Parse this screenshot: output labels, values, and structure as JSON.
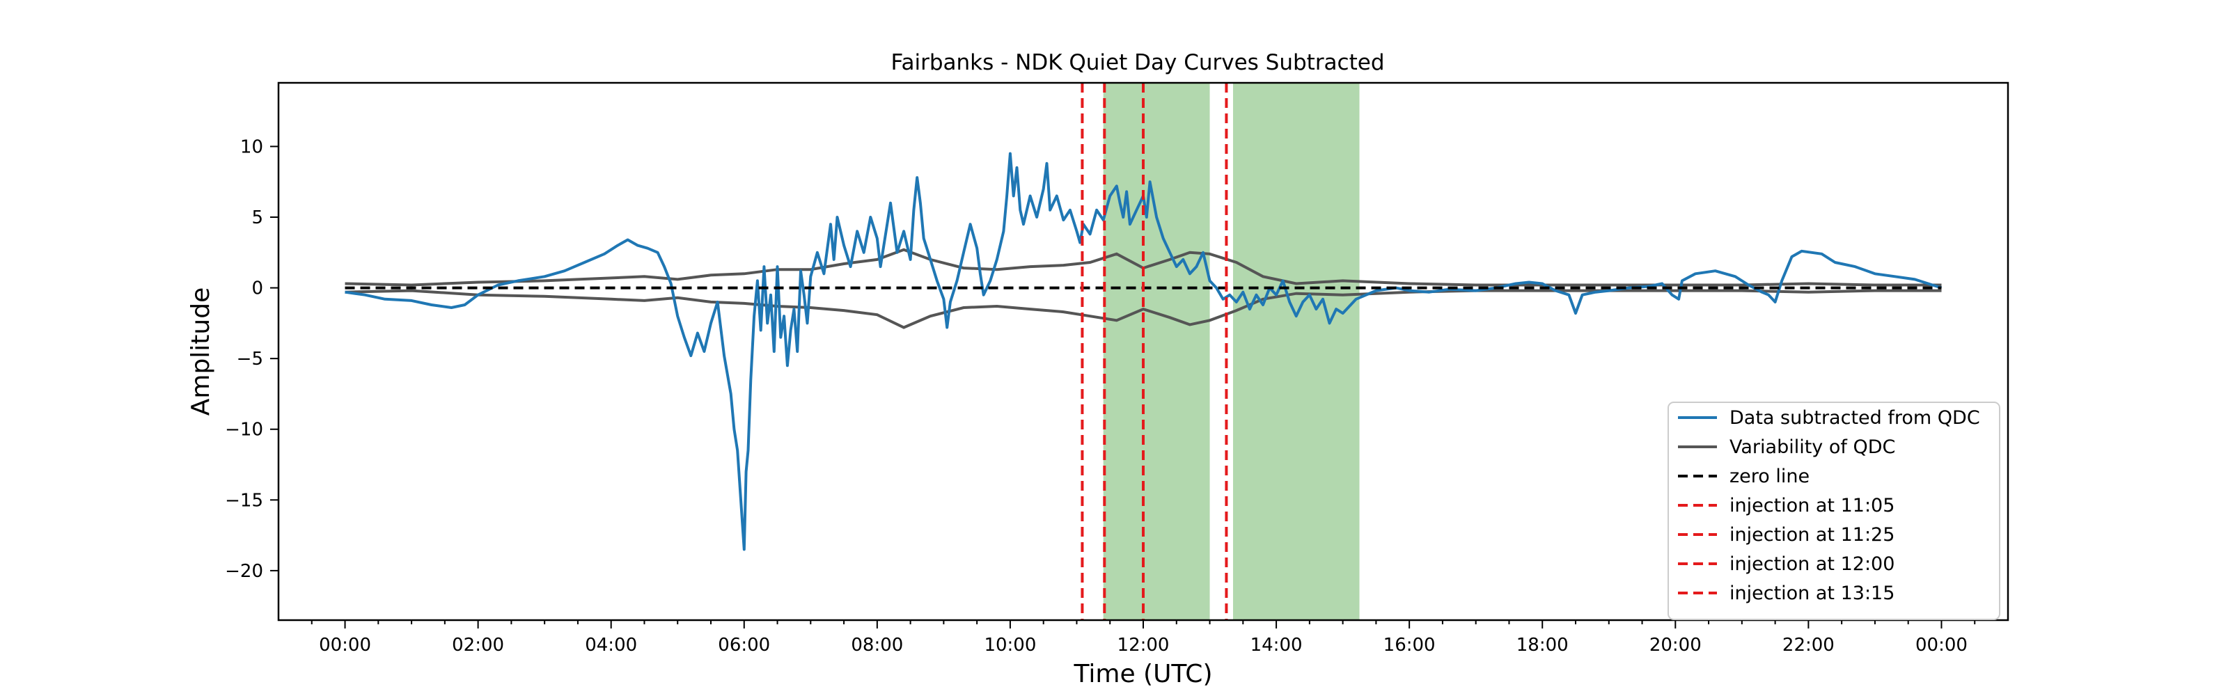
{
  "chart_data": {
    "type": "line",
    "title": "Fairbanks - NDK Quiet Day Curves Subtracted",
    "xlabel": "Time (UTC)",
    "ylabel": "Amplitude",
    "xlim_hours": [
      -1.0,
      25.0
    ],
    "ylim": [
      -23.5,
      14.5
    ],
    "grid": false,
    "legend_position": "lower-right",
    "x_ticks": [
      {
        "hour": 0,
        "label": "00:00"
      },
      {
        "hour": 2,
        "label": "02:00"
      },
      {
        "hour": 4,
        "label": "04:00"
      },
      {
        "hour": 6,
        "label": "06:00"
      },
      {
        "hour": 8,
        "label": "08:00"
      },
      {
        "hour": 10,
        "label": "10:00"
      },
      {
        "hour": 12,
        "label": "12:00"
      },
      {
        "hour": 14,
        "label": "14:00"
      },
      {
        "hour": 16,
        "label": "16:00"
      },
      {
        "hour": 18,
        "label": "18:00"
      },
      {
        "hour": 20,
        "label": "20:00"
      },
      {
        "hour": 22,
        "label": "22:00"
      },
      {
        "hour": 24,
        "label": "00:00"
      }
    ],
    "y_ticks": [
      {
        "value": 10,
        "label": "10"
      },
      {
        "value": 5,
        "label": "5"
      },
      {
        "value": 0,
        "label": "0"
      },
      {
        "value": -5,
        "label": "−5"
      },
      {
        "value": -10,
        "label": "−10"
      },
      {
        "value": -15,
        "label": "−15"
      },
      {
        "value": -20,
        "label": "−20"
      }
    ],
    "shaded_regions": [
      {
        "start_hour": 11.4,
        "end_hour": 13.0,
        "color": "#b2d8ae"
      },
      {
        "start_hour": 13.35,
        "end_hour": 15.25,
        "color": "#b2d8ae"
      }
    ],
    "series": [
      {
        "name": "Data subtracted from QDC",
        "color": "#1f77b4",
        "style": "solid",
        "points": [
          [
            0.0,
            -0.3
          ],
          [
            0.3,
            -0.5
          ],
          [
            0.6,
            -0.8
          ],
          [
            1.0,
            -0.9
          ],
          [
            1.3,
            -1.2
          ],
          [
            1.6,
            -1.4
          ],
          [
            1.8,
            -1.2
          ],
          [
            2.0,
            -0.5
          ],
          [
            2.3,
            0.2
          ],
          [
            2.6,
            0.5
          ],
          [
            3.0,
            0.8
          ],
          [
            3.3,
            1.2
          ],
          [
            3.6,
            1.8
          ],
          [
            3.9,
            2.4
          ],
          [
            4.1,
            3.0
          ],
          [
            4.25,
            3.4
          ],
          [
            4.4,
            3.0
          ],
          [
            4.55,
            2.8
          ],
          [
            4.7,
            2.5
          ],
          [
            4.8,
            1.5
          ],
          [
            4.9,
            0.3
          ],
          [
            5.0,
            -2.0
          ],
          [
            5.1,
            -3.5
          ],
          [
            5.2,
            -4.8
          ],
          [
            5.3,
            -3.2
          ],
          [
            5.4,
            -4.5
          ],
          [
            5.5,
            -2.5
          ],
          [
            5.6,
            -1.0
          ],
          [
            5.7,
            -4.8
          ],
          [
            5.8,
            -7.5
          ],
          [
            5.85,
            -10.0
          ],
          [
            5.9,
            -11.5
          ],
          [
            5.95,
            -15.0
          ],
          [
            6.0,
            -18.5
          ],
          [
            6.03,
            -13.0
          ],
          [
            6.06,
            -11.5
          ],
          [
            6.1,
            -6.5
          ],
          [
            6.15,
            -2.0
          ],
          [
            6.2,
            0.5
          ],
          [
            6.25,
            -3.0
          ],
          [
            6.3,
            1.5
          ],
          [
            6.35,
            -2.5
          ],
          [
            6.4,
            -0.5
          ],
          [
            6.45,
            -4.5
          ],
          [
            6.5,
            1.5
          ],
          [
            6.55,
            -3.5
          ],
          [
            6.6,
            -2.0
          ],
          [
            6.65,
            -5.5
          ],
          [
            6.7,
            -3.0
          ],
          [
            6.75,
            -1.5
          ],
          [
            6.8,
            -4.5
          ],
          [
            6.85,
            1.2
          ],
          [
            6.9,
            -0.5
          ],
          [
            6.95,
            -2.5
          ],
          [
            7.0,
            0.8
          ],
          [
            7.1,
            2.5
          ],
          [
            7.2,
            1.0
          ],
          [
            7.3,
            4.5
          ],
          [
            7.35,
            2.0
          ],
          [
            7.4,
            5.0
          ],
          [
            7.5,
            3.0
          ],
          [
            7.6,
            1.5
          ],
          [
            7.7,
            4.0
          ],
          [
            7.8,
            2.5
          ],
          [
            7.9,
            5.0
          ],
          [
            8.0,
            3.5
          ],
          [
            8.05,
            1.5
          ],
          [
            8.1,
            3.0
          ],
          [
            8.2,
            6.0
          ],
          [
            8.3,
            2.5
          ],
          [
            8.4,
            4.0
          ],
          [
            8.5,
            2.0
          ],
          [
            8.55,
            5.5
          ],
          [
            8.6,
            7.8
          ],
          [
            8.65,
            6.0
          ],
          [
            8.7,
            3.5
          ],
          [
            8.8,
            2.0
          ],
          [
            8.9,
            0.5
          ],
          [
            9.0,
            -0.8
          ],
          [
            9.05,
            -2.8
          ],
          [
            9.1,
            -1.0
          ],
          [
            9.2,
            0.5
          ],
          [
            9.3,
            2.5
          ],
          [
            9.4,
            4.5
          ],
          [
            9.5,
            2.8
          ],
          [
            9.55,
            1.0
          ],
          [
            9.6,
            -0.5
          ],
          [
            9.7,
            0.5
          ],
          [
            9.8,
            2.0
          ],
          [
            9.9,
            4.0
          ],
          [
            9.95,
            6.5
          ],
          [
            10.0,
            9.5
          ],
          [
            10.05,
            6.5
          ],
          [
            10.1,
            8.5
          ],
          [
            10.15,
            5.5
          ],
          [
            10.2,
            4.5
          ],
          [
            10.3,
            6.5
          ],
          [
            10.4,
            5.0
          ],
          [
            10.5,
            7.0
          ],
          [
            10.55,
            8.8
          ],
          [
            10.6,
            5.5
          ],
          [
            10.7,
            6.5
          ],
          [
            10.8,
            4.8
          ],
          [
            10.9,
            5.5
          ],
          [
            11.0,
            4.0
          ],
          [
            11.05,
            3.2
          ],
          [
            11.1,
            4.5
          ],
          [
            11.2,
            3.8
          ],
          [
            11.3,
            5.5
          ],
          [
            11.4,
            4.8
          ],
          [
            11.5,
            6.5
          ],
          [
            11.6,
            7.2
          ],
          [
            11.65,
            6.0
          ],
          [
            11.7,
            5.0
          ],
          [
            11.75,
            6.8
          ],
          [
            11.8,
            4.5
          ],
          [
            11.9,
            5.5
          ],
          [
            12.0,
            6.5
          ],
          [
            12.05,
            5.0
          ],
          [
            12.1,
            7.5
          ],
          [
            12.2,
            5.0
          ],
          [
            12.3,
            3.5
          ],
          [
            12.4,
            2.5
          ],
          [
            12.5,
            1.5
          ],
          [
            12.6,
            2.0
          ],
          [
            12.7,
            1.0
          ],
          [
            12.8,
            1.5
          ],
          [
            12.9,
            2.5
          ],
          [
            13.0,
            0.5
          ],
          [
            13.1,
            0.0
          ],
          [
            13.2,
            -0.8
          ],
          [
            13.3,
            -0.5
          ],
          [
            13.4,
            -1.0
          ],
          [
            13.5,
            -0.3
          ],
          [
            13.6,
            -1.5
          ],
          [
            13.7,
            -0.5
          ],
          [
            13.8,
            -1.2
          ],
          [
            13.9,
            0.0
          ],
          [
            14.0,
            -0.5
          ],
          [
            14.1,
            0.5
          ],
          [
            14.2,
            -1.0
          ],
          [
            14.3,
            -2.0
          ],
          [
            14.4,
            -1.0
          ],
          [
            14.5,
            -0.5
          ],
          [
            14.6,
            -1.5
          ],
          [
            14.7,
            -0.8
          ],
          [
            14.8,
            -2.5
          ],
          [
            14.9,
            -1.5
          ],
          [
            15.0,
            -1.8
          ],
          [
            15.2,
            -0.8
          ],
          [
            15.5,
            -0.2
          ],
          [
            15.8,
            0.0
          ],
          [
            16.0,
            -0.2
          ],
          [
            16.3,
            -0.3
          ],
          [
            16.6,
            -0.1
          ],
          [
            17.0,
            -0.2
          ],
          [
            17.3,
            0.0
          ],
          [
            17.6,
            0.3
          ],
          [
            17.8,
            0.4
          ],
          [
            18.0,
            0.3
          ],
          [
            18.2,
            -0.2
          ],
          [
            18.4,
            -0.5
          ],
          [
            18.5,
            -1.8
          ],
          [
            18.6,
            -0.5
          ],
          [
            18.8,
            -0.3
          ],
          [
            19.0,
            -0.2
          ],
          [
            19.3,
            0.0
          ],
          [
            19.6,
            0.1
          ],
          [
            19.8,
            0.3
          ],
          [
            19.95,
            -0.5
          ],
          [
            20.05,
            -0.8
          ],
          [
            20.1,
            0.5
          ],
          [
            20.3,
            1.0
          ],
          [
            20.6,
            1.2
          ],
          [
            20.9,
            0.8
          ],
          [
            21.1,
            0.2
          ],
          [
            21.3,
            -0.3
          ],
          [
            21.4,
            -0.5
          ],
          [
            21.5,
            -1.0
          ],
          [
            21.6,
            0.5
          ],
          [
            21.75,
            2.2
          ],
          [
            21.9,
            2.6
          ],
          [
            22.2,
            2.4
          ],
          [
            22.4,
            1.8
          ],
          [
            22.7,
            1.5
          ],
          [
            23.0,
            1.0
          ],
          [
            23.3,
            0.8
          ],
          [
            23.6,
            0.6
          ],
          [
            24.0,
            0.0
          ]
        ]
      },
      {
        "name": "Variability of QDC",
        "color": "#555555",
        "style": "solid",
        "upper_points": [
          [
            0.0,
            0.3
          ],
          [
            1.0,
            0.2
          ],
          [
            2.0,
            0.4
          ],
          [
            3.0,
            0.5
          ],
          [
            4.0,
            0.7
          ],
          [
            4.5,
            0.8
          ],
          [
            5.0,
            0.6
          ],
          [
            5.5,
            0.9
          ],
          [
            6.0,
            1.0
          ],
          [
            6.5,
            1.3
          ],
          [
            7.0,
            1.3
          ],
          [
            7.5,
            1.7
          ],
          [
            8.0,
            2.0
          ],
          [
            8.4,
            2.7
          ],
          [
            8.8,
            2.0
          ],
          [
            9.3,
            1.4
          ],
          [
            9.8,
            1.3
          ],
          [
            10.3,
            1.5
          ],
          [
            10.8,
            1.6
          ],
          [
            11.2,
            1.8
          ],
          [
            11.6,
            2.4
          ],
          [
            12.0,
            1.4
          ],
          [
            12.4,
            2.0
          ],
          [
            12.7,
            2.5
          ],
          [
            13.0,
            2.4
          ],
          [
            13.4,
            1.8
          ],
          [
            13.8,
            0.8
          ],
          [
            14.3,
            0.3
          ],
          [
            15.0,
            0.5
          ],
          [
            16.0,
            0.3
          ],
          [
            17.0,
            0.2
          ],
          [
            18.0,
            0.2
          ],
          [
            19.0,
            0.2
          ],
          [
            20.0,
            0.2
          ],
          [
            21.0,
            0.2
          ],
          [
            22.0,
            0.3
          ],
          [
            23.0,
            0.2
          ],
          [
            24.0,
            0.2
          ]
        ],
        "lower_points": [
          [
            0.0,
            -0.3
          ],
          [
            1.0,
            -0.2
          ],
          [
            2.0,
            -0.5
          ],
          [
            3.0,
            -0.6
          ],
          [
            4.0,
            -0.8
          ],
          [
            4.5,
            -0.9
          ],
          [
            5.0,
            -0.7
          ],
          [
            5.5,
            -1.0
          ],
          [
            6.0,
            -1.1
          ],
          [
            6.5,
            -1.3
          ],
          [
            7.0,
            -1.4
          ],
          [
            7.5,
            -1.6
          ],
          [
            8.0,
            -1.9
          ],
          [
            8.4,
            -2.8
          ],
          [
            8.8,
            -2.0
          ],
          [
            9.3,
            -1.4
          ],
          [
            9.8,
            -1.3
          ],
          [
            10.3,
            -1.5
          ],
          [
            10.8,
            -1.7
          ],
          [
            11.2,
            -2.0
          ],
          [
            11.6,
            -2.3
          ],
          [
            12.0,
            -1.5
          ],
          [
            12.4,
            -2.1
          ],
          [
            12.7,
            -2.6
          ],
          [
            13.0,
            -2.3
          ],
          [
            13.4,
            -1.6
          ],
          [
            13.8,
            -0.8
          ],
          [
            14.3,
            -0.4
          ],
          [
            15.0,
            -0.5
          ],
          [
            16.0,
            -0.3
          ],
          [
            17.0,
            -0.2
          ],
          [
            18.0,
            -0.2
          ],
          [
            19.0,
            -0.2
          ],
          [
            20.0,
            -0.2
          ],
          [
            21.0,
            -0.2
          ],
          [
            22.0,
            -0.3
          ],
          [
            23.0,
            -0.2
          ],
          [
            24.0,
            -0.2
          ]
        ]
      },
      {
        "name": "zero line",
        "color": "#000000",
        "style": "dashed",
        "points": [
          [
            0.0,
            0.0
          ],
          [
            24.0,
            0.0
          ]
        ]
      }
    ],
    "injections": [
      {
        "name": "injection at 11:05",
        "hour": 11.0833,
        "color": "#e41a1c"
      },
      {
        "name": "injection at 11:25",
        "hour": 11.4167,
        "color": "#e41a1c"
      },
      {
        "name": "injection at 12:00",
        "hour": 12.0,
        "color": "#e41a1c"
      },
      {
        "name": "injection at 13:15",
        "hour": 13.25,
        "color": "#e41a1c"
      }
    ]
  }
}
